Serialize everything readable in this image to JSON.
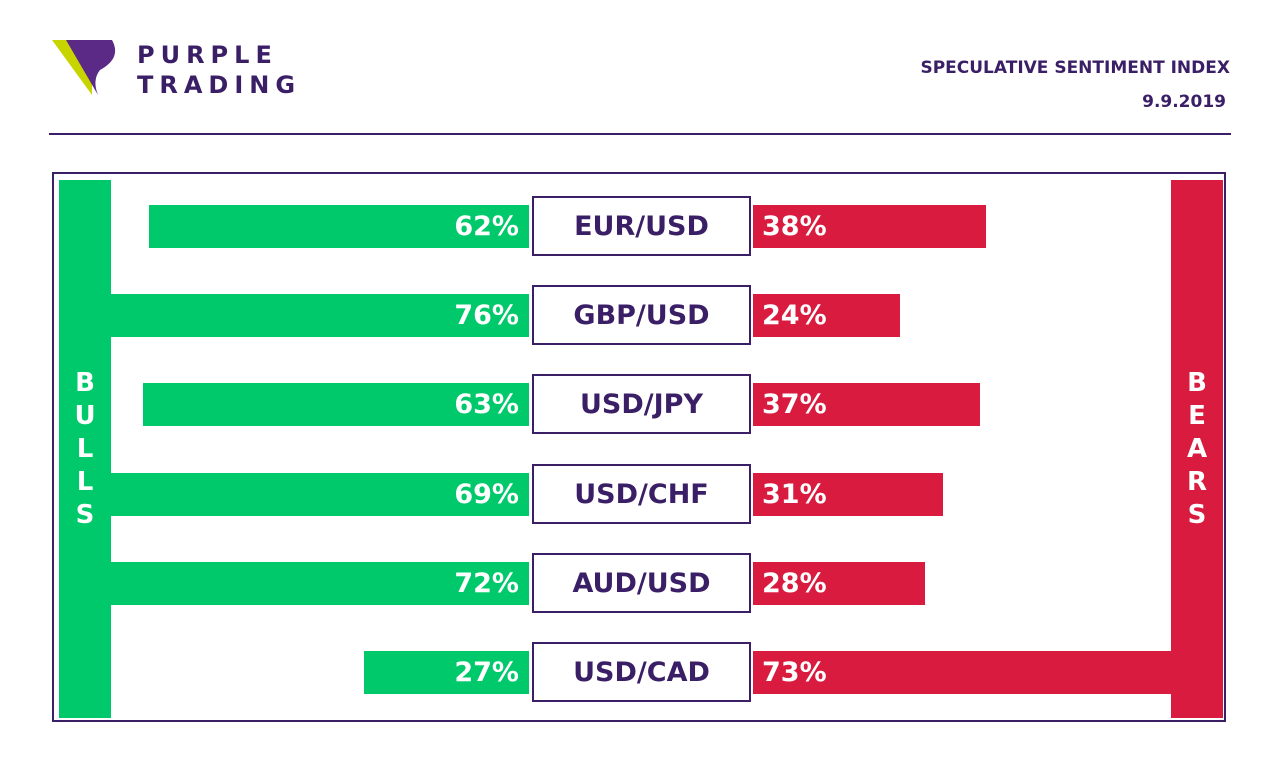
{
  "brand": {
    "name": "PURPLE\nTRADING"
  },
  "header": {
    "title": "SPECULATIVE SENTIMENT INDEX",
    "date": "9.9.2019"
  },
  "colors": {
    "bulls": "#00c96b",
    "bears": "#d81b3f",
    "brand": "#3a1f66",
    "logo_accent": "#c8d400"
  },
  "chart_data": {
    "type": "bar",
    "left_label": "B\nU\nL\nL\nS",
    "right_label": "B\nE\nA\nR\nS",
    "categories": [
      "EUR/USD",
      "GBP/USD",
      "USD/JPY",
      "USD/CHF",
      "AUD/USD",
      "USD/CAD"
    ],
    "series": [
      {
        "name": "BULLS",
        "values": [
          62,
          76,
          63,
          69,
          72,
          27
        ]
      },
      {
        "name": "BEARS",
        "values": [
          38,
          24,
          37,
          31,
          28,
          73
        ]
      }
    ],
    "value_suffix": "%"
  }
}
